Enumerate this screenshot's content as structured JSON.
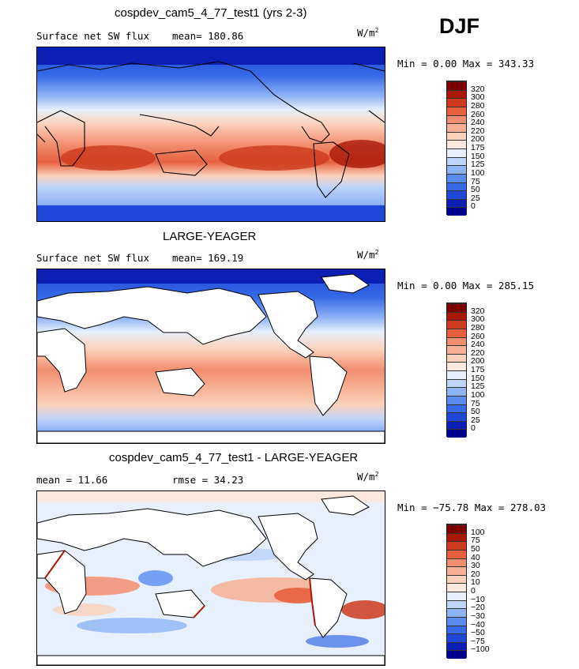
{
  "season": "DJF",
  "chart_data": [
    {
      "type": "heatmap",
      "title": "cospdev_cam5_4_77_test1 (yrs 2-3)",
      "field_label": "Surface net SW flux",
      "stat_line": "mean= 180.86",
      "units": "W/m",
      "units_power": "2",
      "min_max": "Min =   0.00 Max = 343.33",
      "colorbar": {
        "levels": [
          "0",
          "25",
          "50",
          "75",
          "100",
          "125",
          "150",
          "175",
          "200",
          "220",
          "240",
          "260",
          "280",
          "300",
          "320"
        ],
        "colors": [
          "#00008f",
          "#0c1fb4",
          "#1f48d8",
          "#3569e6",
          "#5a8cf0",
          "#8fb4f6",
          "#bfd5fb",
          "#e7f0fc",
          "#fbe9df",
          "#fcd2bb",
          "#f7b093",
          "#f28d6f",
          "#e6603e",
          "#cd3a1d",
          "#a91707",
          "#7d0000"
        ]
      },
      "mean": 180.86,
      "min": 0.0,
      "max": 343.33
    },
    {
      "type": "heatmap",
      "title": "LARGE-YEAGER",
      "field_label": "Surface net SW flux",
      "stat_line": "mean= 169.19",
      "units": "W/m",
      "units_power": "2",
      "min_max": "Min =   0.00 Max = 285.15",
      "colorbar": {
        "levels": [
          "0",
          "25",
          "50",
          "75",
          "100",
          "125",
          "150",
          "175",
          "200",
          "220",
          "240",
          "260",
          "280",
          "300",
          "320"
        ],
        "colors": [
          "#00008f",
          "#0c1fb4",
          "#1f48d8",
          "#3569e6",
          "#5a8cf0",
          "#8fb4f6",
          "#bfd5fb",
          "#e7f0fc",
          "#fbe9df",
          "#fcd2bb",
          "#f7b093",
          "#f28d6f",
          "#e6603e",
          "#cd3a1d",
          "#a91707",
          "#7d0000"
        ]
      },
      "mean": 169.19,
      "min": 0.0,
      "max": 285.15
    },
    {
      "type": "heatmap",
      "title": "cospdev_cam5_4_77_test1 - LARGE-YEAGER",
      "stat_left": "mean =   11.66",
      "stat_right": "rmse =   34.23",
      "units": "W/m",
      "units_power": "2",
      "min_max": "Min = −75.78 Max = 278.03",
      "colorbar": {
        "levels": [
          "−100",
          "−75",
          "−50",
          "−40",
          "−30",
          "−20",
          "−10",
          "0",
          "10",
          "20",
          "30",
          "40",
          "50",
          "75",
          "100"
        ],
        "colors": [
          "#00008f",
          "#0c1fb4",
          "#1f48d8",
          "#3569e6",
          "#5a8cf0",
          "#8fb4f6",
          "#bfd5fb",
          "#e7f0fc",
          "#fbe9df",
          "#fcd2bb",
          "#f7b093",
          "#f28d6f",
          "#e6603e",
          "#cd3a1d",
          "#a91707",
          "#7d0000"
        ]
      },
      "mean": 11.66,
      "rmse": 34.23,
      "min": -75.78,
      "max": 278.03
    }
  ]
}
